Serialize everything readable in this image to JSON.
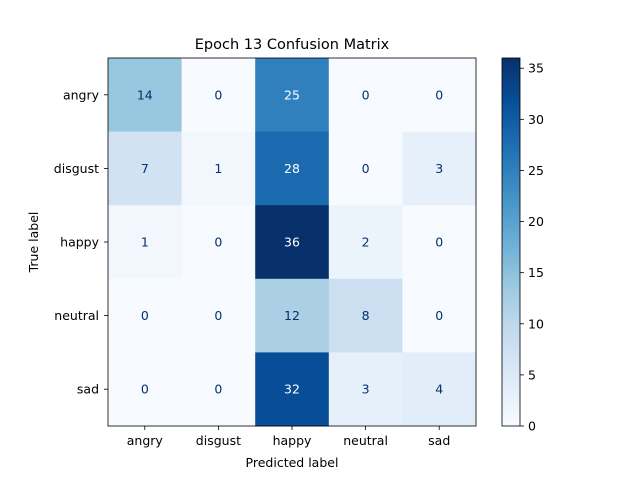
{
  "chart_data": {
    "type": "heatmap",
    "title": "Epoch 13 Confusion Matrix",
    "xlabel": "Predicted label",
    "ylabel": "True label",
    "x_categories": [
      "angry",
      "disgust",
      "happy",
      "neutral",
      "sad"
    ],
    "y_categories": [
      "angry",
      "disgust",
      "happy",
      "neutral",
      "sad"
    ],
    "values": [
      [
        14,
        0,
        25,
        0,
        0
      ],
      [
        7,
        1,
        28,
        0,
        3
      ],
      [
        1,
        0,
        36,
        2,
        0
      ],
      [
        0,
        0,
        12,
        8,
        0
      ],
      [
        0,
        0,
        32,
        3,
        4
      ]
    ],
    "colormap": "Blues",
    "colorbar": {
      "range": [
        0,
        36
      ],
      "ticks": [
        0,
        5,
        10,
        15,
        20,
        25,
        30,
        35
      ]
    }
  }
}
